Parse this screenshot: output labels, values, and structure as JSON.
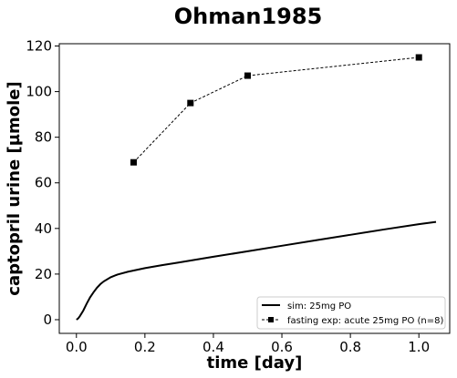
{
  "chart_data": {
    "type": "line",
    "title": "Ohman1985",
    "xlabel": "time [day]",
    "ylabel": "captopril urine [µmole]",
    "xlim": [
      -0.05,
      1.09
    ],
    "ylim": [
      -6,
      121
    ],
    "xticks": [
      0.0,
      0.2,
      0.4,
      0.6,
      0.8,
      1.0
    ],
    "xtick_labels": [
      "0.0",
      "0.2",
      "0.4",
      "0.6",
      "0.8",
      "1.0"
    ],
    "yticks": [
      0,
      20,
      40,
      60,
      80,
      100,
      120
    ],
    "ytick_labels": [
      "0",
      "20",
      "40",
      "60",
      "80",
      "100",
      "120"
    ],
    "grid": false,
    "legend_position": "lower-right",
    "series": [
      {
        "name": "sim: 25mg PO",
        "style": "solid",
        "color": "#000000",
        "marker": "none",
        "x": [
          0.0,
          0.005,
          0.01,
          0.02,
          0.03,
          0.04,
          0.05,
          0.06,
          0.07,
          0.08,
          0.1,
          0.12,
          0.15,
          0.2,
          0.25,
          0.3,
          0.4,
          0.5,
          0.6,
          0.7,
          0.8,
          0.9,
          1.0,
          1.05
        ],
        "y": [
          0.0,
          0.5,
          1.5,
          4.0,
          7.0,
          9.8,
          12.0,
          14.0,
          15.6,
          16.8,
          18.6,
          19.8,
          21.0,
          22.6,
          23.9,
          25.1,
          27.6,
          30.0,
          32.4,
          34.8,
          37.2,
          39.6,
          41.9,
          42.9
        ]
      },
      {
        "name": "fasting exp: acute 25mg PO (n=8)",
        "style": "dashed",
        "color": "#000000",
        "marker": "square",
        "x": [
          0.167,
          0.333,
          0.5,
          1.0
        ],
        "y": [
          69,
          95,
          107,
          115
        ]
      }
    ]
  }
}
